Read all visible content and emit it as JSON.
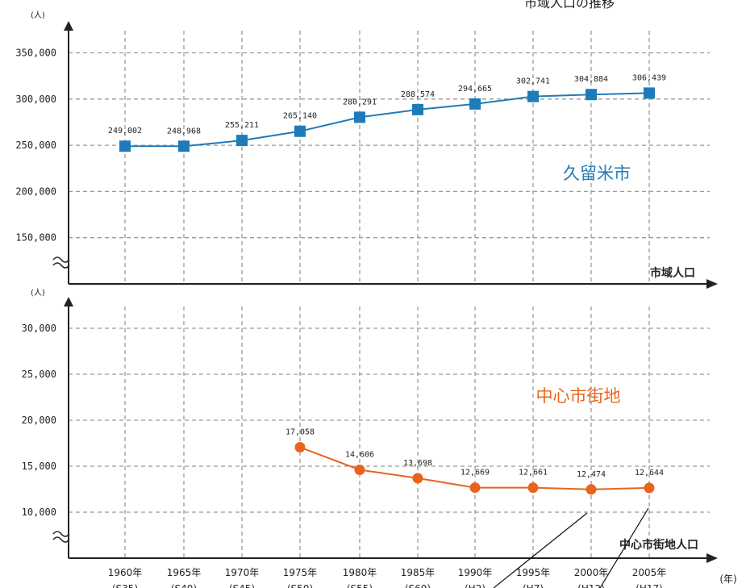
{
  "partial_title": "市域人口の推移",
  "chart_data": [
    {
      "type": "line",
      "series": [
        {
          "name": "久留米市",
          "values": [
            249002,
            248968,
            255211,
            265140,
            280291,
            288574,
            294665,
            302741,
            304884,
            306439
          ],
          "labels": [
            "249,002",
            "248,968",
            "255,211",
            "265,140",
            "280,291",
            "288,574",
            "294,665",
            "302,741",
            "304,884",
            "306,439"
          ],
          "color": "#1f7bb8",
          "marker": "square"
        }
      ],
      "categories": [
        "1960年",
        "1965年",
        "1970年",
        "1975年",
        "1980年",
        "1985年",
        "1990年",
        "1995年",
        "2000年",
        "2005年"
      ],
      "category_sub": [
        "(S35)",
        "(S40)",
        "(S45)",
        "(S50)",
        "(S55)",
        "(S60)",
        "(H2)",
        "(H7)",
        "(H12)",
        "(H17)"
      ],
      "yticks": [
        "150,000",
        "200,000",
        "250,000",
        "300,000",
        "350,000"
      ],
      "ytick_values": [
        150000,
        200000,
        250000,
        300000,
        350000
      ],
      "ylim": [
        100000,
        375000
      ],
      "ylabel": "(人)",
      "xlabel": "市域人口",
      "axis_break": true,
      "grid": true
    },
    {
      "type": "line",
      "series": [
        {
          "name": "中心市街地",
          "values": [
            null,
            null,
            null,
            17058,
            14606,
            13698,
            12669,
            12661,
            12474,
            12644
          ],
          "labels": [
            "",
            "",
            "",
            "17,058",
            "14,606",
            "13,698",
            "12,669",
            "12,661",
            "12,474",
            "12,644"
          ],
          "color": "#e8641e",
          "marker": "circle"
        }
      ],
      "categories": [
        "1960年",
        "1965年",
        "1970年",
        "1975年",
        "1980年",
        "1985年",
        "1990年",
        "1995年",
        "2000年",
        "2005年"
      ],
      "category_sub": [
        "(S35)",
        "(S40)",
        "(S45)",
        "(S50)",
        "(S55)",
        "(S60)",
        "(H2)",
        "(H7)",
        "(H12)",
        "(H17)"
      ],
      "yticks": [
        "10,000",
        "15,000",
        "20,000",
        "25,000",
        "30,000"
      ],
      "ytick_values": [
        10000,
        15000,
        20000,
        25000,
        30000
      ],
      "ylim": [
        5000,
        32500
      ],
      "ylabel": "(人)",
      "xlabel": "中心市街地人口",
      "x_unit": "(年)",
      "axis_break": true,
      "grid": true
    }
  ]
}
